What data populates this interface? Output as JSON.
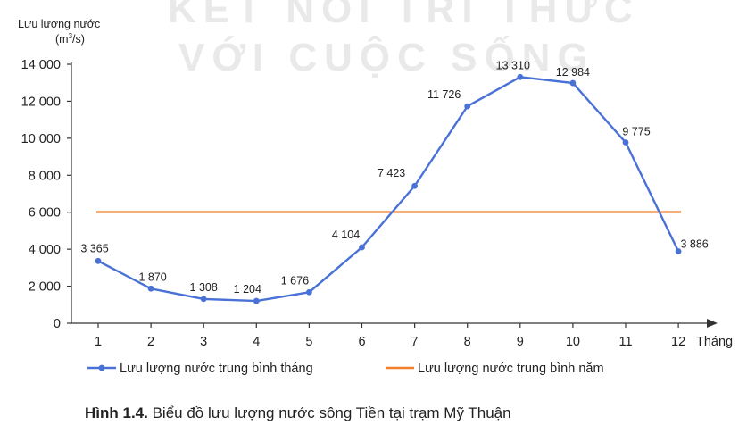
{
  "watermark": {
    "line1": "KẾT NỐI TRI THỨC",
    "line2": "VỚI CUỘC SỐNG"
  },
  "caption": {
    "figure_label": "Hình 1.4.",
    "text": " Biểu đồ lưu lượng nước sông Tiền tại trạm Mỹ Thuận"
  },
  "colors": {
    "monthly": "#4a72d6",
    "annual": "#f07f2c",
    "axis": "#333333"
  },
  "chart_data": {
    "type": "line",
    "ylabel": "Lưu lượng nước",
    "yunit_prefix": "(m",
    "yunit_sup": "3",
    "yunit_suffix": "/s)",
    "xlabel": "Tháng",
    "x": [
      "1",
      "2",
      "3",
      "4",
      "5",
      "6",
      "7",
      "8",
      "9",
      "10",
      "11",
      "12"
    ],
    "ylim": [
      0,
      14000
    ],
    "yticks": [
      0,
      2000,
      4000,
      6000,
      8000,
      10000,
      12000,
      14000
    ],
    "ytick_labels": [
      "0",
      "2 000",
      "4 000",
      "6 000",
      "8 000",
      "10 000",
      "12 000",
      "14 000"
    ],
    "grid": false,
    "legend_position": "bottom",
    "series": [
      {
        "name": "Lưu lượng nước trung bình tháng",
        "values": [
          3365,
          1870,
          1308,
          1204,
          1676,
          4104,
          7423,
          11726,
          13310,
          12984,
          9775,
          3886
        ],
        "labels": [
          "3 365",
          "1 870",
          "1 308",
          "1 204",
          "1 676",
          "4 104",
          "7 423",
          "11 726",
          "13 310",
          "12 984",
          "9 775",
          "3 886"
        ]
      },
      {
        "name": "Lưu lượng nước trung bình năm",
        "value": 6010
      }
    ]
  }
}
